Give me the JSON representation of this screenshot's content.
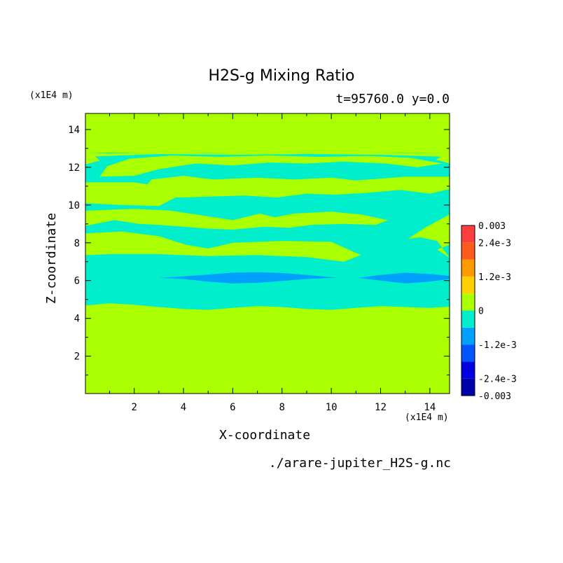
{
  "chart_data": {
    "type": "heatmap",
    "title": "H2S-g Mixing Ratio",
    "subtitle": "t=95760.0 y=0.0",
    "xlabel": "X-coordinate",
    "ylabel": "Z-coordinate",
    "x_unit": "(x1E4 m)",
    "y_unit": "(x1E4 m)",
    "footer": "./arare-jupiter_H2S-g.nc",
    "xlim": [
      0.02,
      14.8
    ],
    "ylim": [
      0.02,
      14.85
    ],
    "x_ticks": [
      2,
      4,
      6,
      8,
      10,
      12,
      14
    ],
    "y_ticks": [
      2,
      4,
      6,
      8,
      10,
      12,
      14
    ],
    "x_tick_labels": [
      "2",
      "4",
      "6",
      "8",
      "10",
      "12",
      "14"
    ],
    "y_tick_labels": [
      "2",
      "4",
      "6",
      "8",
      "10",
      "12",
      "14"
    ],
    "colorbar": {
      "levels": [
        -0.003,
        -0.0024,
        -0.0018,
        -0.0012,
        -0.0006,
        0,
        0.0006,
        0.0012,
        0.0018,
        0.0024,
        0.003
      ],
      "colors": [
        "#0000a8",
        "#0000e0",
        "#0055ff",
        "#00a0ff",
        "#00eecc",
        "#aaff00",
        "#ffd000",
        "#ff9900",
        "#ff5a1e",
        "#ff3f3f"
      ],
      "labels": [
        "-0.003",
        "-2.4e-3",
        "-1.2e-3",
        "0",
        "1.2e-3",
        "2.4e-3",
        "0.003"
      ],
      "label_values": [
        -0.003,
        -0.0024,
        -0.0012,
        0,
        0.0012,
        0.0024,
        0.003
      ]
    },
    "background_level_color": "#aaff00",
    "regions": [
      {
        "name": "main-cyan-band",
        "color": "#00eecc",
        "top": [
          [
            0.02,
            12.74
          ],
          [
            1,
            12.78
          ],
          [
            3,
            12.72
          ],
          [
            5,
            12.76
          ],
          [
            7,
            12.7
          ],
          [
            9,
            12.75
          ],
          [
            11,
            12.72
          ],
          [
            13,
            12.76
          ],
          [
            14.8,
            12.74
          ]
        ],
        "bottom": [
          [
            0.02,
            4.68
          ],
          [
            1,
            4.8
          ],
          [
            2,
            4.72
          ],
          [
            3,
            4.6
          ],
          [
            4,
            4.5
          ],
          [
            5,
            4.45
          ],
          [
            6,
            4.55
          ],
          [
            7,
            4.65
          ],
          [
            8,
            4.6
          ],
          [
            9,
            4.5
          ],
          [
            10,
            4.45
          ],
          [
            11,
            4.55
          ],
          [
            12,
            4.65
          ],
          [
            13,
            4.6
          ],
          [
            14,
            4.55
          ],
          [
            14.8,
            4.62
          ]
        ]
      },
      {
        "name": "deep-blue-lens-left",
        "color": "#00a0ff",
        "top": [
          [
            3,
            6.15
          ],
          [
            4,
            6.22
          ],
          [
            5,
            6.32
          ],
          [
            6,
            6.42
          ],
          [
            7,
            6.45
          ],
          [
            8,
            6.4
          ],
          [
            9,
            6.3
          ],
          [
            10,
            6.18
          ],
          [
            10.3,
            6.15
          ]
        ],
        "bottom": [
          [
            3,
            6.15
          ],
          [
            4,
            6.08
          ],
          [
            5,
            5.95
          ],
          [
            6,
            5.85
          ],
          [
            7,
            5.88
          ],
          [
            8,
            5.98
          ],
          [
            9,
            6.08
          ],
          [
            10,
            6.14
          ],
          [
            10.3,
            6.15
          ]
        ]
      },
      {
        "name": "deep-blue-lens-right",
        "color": "#00a0ff",
        "top": [
          [
            11.1,
            6.15
          ],
          [
            12,
            6.3
          ],
          [
            13,
            6.42
          ],
          [
            14,
            6.35
          ],
          [
            14.8,
            6.25
          ]
        ],
        "bottom": [
          [
            11.1,
            6.15
          ],
          [
            12,
            6.0
          ],
          [
            13,
            5.85
          ],
          [
            14,
            5.95
          ],
          [
            14.8,
            6.08
          ]
        ]
      }
    ],
    "green_patches": [
      {
        "points": [
          [
            0.02,
            7.35
          ],
          [
            1,
            7.4
          ],
          [
            3,
            7.4
          ],
          [
            5,
            7.3
          ],
          [
            7,
            7.35
          ],
          [
            9,
            7.25
          ],
          [
            10.5,
            7.0
          ],
          [
            11.2,
            7.35
          ],
          [
            10,
            8.05
          ],
          [
            8,
            8.1
          ],
          [
            6,
            8.0
          ],
          [
            5,
            7.7
          ],
          [
            4.1,
            7.9
          ],
          [
            3,
            8.35
          ],
          [
            1.5,
            8.6
          ],
          [
            0.02,
            8.5
          ]
        ]
      },
      {
        "points": [
          [
            0.02,
            8.9
          ],
          [
            1.2,
            9.2
          ],
          [
            2.2,
            9.0
          ],
          [
            3.0,
            8.95
          ],
          [
            4.0,
            8.85
          ],
          [
            5,
            8.75
          ],
          [
            6,
            8.7
          ],
          [
            7.3,
            8.85
          ],
          [
            8.3,
            8.8
          ],
          [
            9.2,
            8.95
          ],
          [
            10.5,
            9.0
          ],
          [
            11.8,
            8.95
          ],
          [
            12.3,
            9.2
          ],
          [
            11.2,
            9.5
          ],
          [
            10,
            9.65
          ],
          [
            8.5,
            9.55
          ],
          [
            7.7,
            9.35
          ],
          [
            7.1,
            9.55
          ],
          [
            6.0,
            9.2
          ],
          [
            5,
            9.4
          ],
          [
            3.5,
            9.7
          ],
          [
            2,
            9.8
          ],
          [
            0.02,
            9.7
          ]
        ]
      },
      {
        "points": [
          [
            14.8,
            9.5
          ],
          [
            13.8,
            8.8
          ],
          [
            13.1,
            8.2
          ],
          [
            13.6,
            8.3
          ],
          [
            14.3,
            8.1
          ],
          [
            14.8,
            7.2
          ],
          [
            14.3,
            7.65
          ],
          [
            14.8,
            7.9
          ]
        ]
      },
      {
        "points": [
          [
            0.02,
            10.1
          ],
          [
            1.5,
            10.0
          ],
          [
            3,
            9.95
          ],
          [
            3.9,
            10.55
          ],
          [
            3.0,
            11.0
          ],
          [
            2,
            11.2
          ],
          [
            0.02,
            11.2
          ]
        ]
      },
      {
        "points": [
          [
            2.1,
            10.4
          ],
          [
            4,
            10.4
          ],
          [
            5,
            10.45
          ],
          [
            6.5,
            10.5
          ],
          [
            7.8,
            10.4
          ],
          [
            9,
            10.6
          ],
          [
            10.2,
            10.55
          ],
          [
            11.5,
            10.65
          ],
          [
            12.8,
            10.8
          ],
          [
            14,
            10.6
          ],
          [
            14.8,
            10.85
          ],
          [
            14.8,
            11.5
          ],
          [
            13,
            11.5
          ],
          [
            11,
            11.3
          ],
          [
            10,
            11.45
          ],
          [
            8.5,
            11.35
          ],
          [
            7,
            11.45
          ],
          [
            5.2,
            11.35
          ],
          [
            4,
            11.55
          ],
          [
            2.7,
            11.35
          ]
        ]
      },
      {
        "points": [
          [
            0.6,
            11.5
          ],
          [
            2,
            11.55
          ],
          [
            3,
            11.9
          ],
          [
            4.5,
            12.2
          ],
          [
            6,
            12.1
          ],
          [
            7.5,
            12.25
          ],
          [
            9,
            12.2
          ],
          [
            10.5,
            12.3
          ],
          [
            12.2,
            12.2
          ],
          [
            13.5,
            12.0
          ],
          [
            14.5,
            12.2
          ],
          [
            13.2,
            12.5
          ],
          [
            11.5,
            12.6
          ],
          [
            9.5,
            12.55
          ],
          [
            7.5,
            12.62
          ],
          [
            5.5,
            12.55
          ],
          [
            3.5,
            12.62
          ],
          [
            1.8,
            12.45
          ],
          [
            0.9,
            12.05
          ]
        ]
      },
      {
        "points": [
          [
            0.02,
            12.15
          ],
          [
            0.6,
            12.35
          ],
          [
            0.4,
            12.6
          ],
          [
            0.02,
            12.65
          ]
        ]
      },
      {
        "points": [
          [
            14.8,
            12.2
          ],
          [
            14.25,
            12.4
          ],
          [
            14.5,
            12.6
          ],
          [
            14.8,
            12.62
          ]
        ]
      },
      {
        "points": [
          [
            0.02,
            12.55
          ],
          [
            3,
            12.7
          ],
          [
            6,
            12.66
          ],
          [
            9,
            12.7
          ],
          [
            12,
            12.66
          ],
          [
            14.8,
            12.55
          ],
          [
            14.8,
            12.74
          ],
          [
            0.02,
            12.74
          ]
        ]
      }
    ],
    "inner_cyan_spots": [
      {
        "points": [
          [
            4.8,
            11.8
          ],
          [
            5.5,
            11.55
          ],
          [
            6.2,
            11.75
          ],
          [
            5.6,
            11.95
          ]
        ]
      },
      {
        "points": [
          [
            8.0,
            11.75
          ],
          [
            9.0,
            11.5
          ],
          [
            9.6,
            11.8
          ],
          [
            8.8,
            11.95
          ]
        ]
      },
      {
        "points": [
          [
            11.6,
            11.8
          ],
          [
            12.3,
            11.6
          ],
          [
            12.8,
            11.85
          ],
          [
            12.1,
            12.0
          ]
        ]
      }
    ],
    "grid": false
  }
}
